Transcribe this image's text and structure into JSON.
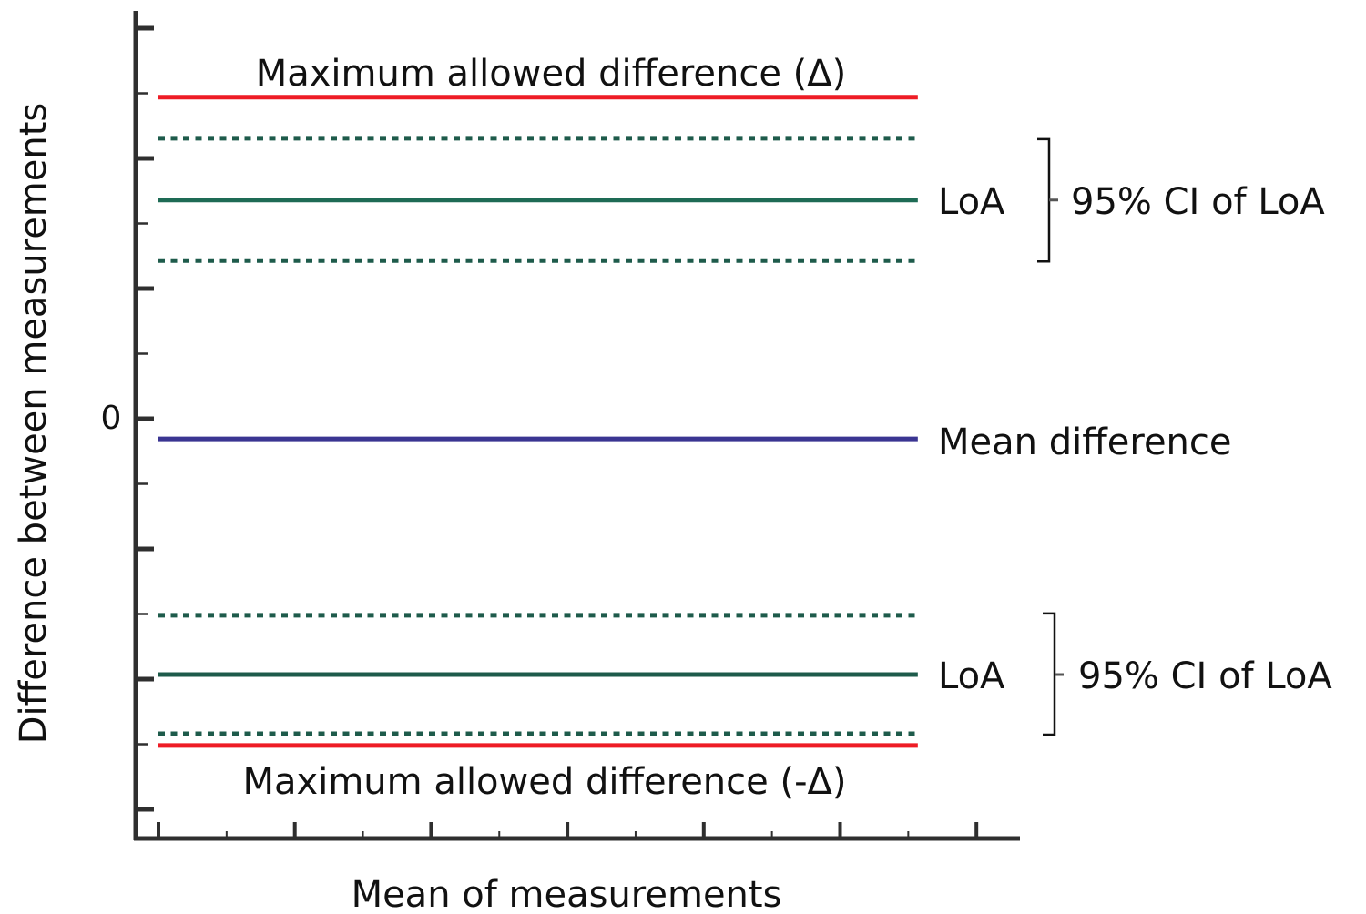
{
  "chart_data": {
    "type": "line",
    "title": "",
    "xlabel": "Mean of measurements",
    "ylabel": "Difference between measurements",
    "ylim": [
      -6.1,
      6.0
    ],
    "xlim": [
      0,
      6.3
    ],
    "y_major_ticks": [
      -6,
      -4,
      -2,
      0,
      2,
      4,
      6
    ],
    "y_minor_ticks": [
      -5,
      -3,
      -1,
      1,
      3,
      5
    ],
    "y_tick_labels": [
      {
        "value": 0,
        "label": "0"
      }
    ],
    "x_major_ticks": [
      0,
      1,
      2,
      3,
      4,
      5,
      6
    ],
    "x_minor_ticks": [
      0.5,
      1.5,
      2.5,
      3.5,
      4.5,
      5.5
    ],
    "grid": false,
    "line_x_range": [
      0,
      5.57
    ],
    "series": [
      {
        "name": "Maximum allowed difference (Δ)",
        "y": 4.94,
        "style": "solid",
        "color": "#ee1c25"
      },
      {
        "name": "Upper LoA CI upper",
        "y": 4.31,
        "style": "dotted",
        "color": "#1e5b4b"
      },
      {
        "name": "Upper LoA",
        "y": 3.36,
        "style": "solid",
        "color": "#1e6b55"
      },
      {
        "name": "Upper LoA CI lower",
        "y": 2.43,
        "style": "dotted",
        "color": "#1e5b4b"
      },
      {
        "name": "Mean difference",
        "y": -0.31,
        "style": "solid",
        "color": "#3a3592"
      },
      {
        "name": "Lower LoA CI upper",
        "y": -3.02,
        "style": "dotted",
        "color": "#1e5b4b"
      },
      {
        "name": "Lower LoA",
        "y": -3.93,
        "style": "solid",
        "color": "#1e5b4b"
      },
      {
        "name": "Lower LoA CI lower",
        "y": -4.84,
        "style": "dotted",
        "color": "#1e5b4b"
      },
      {
        "name": "Maximum allowed difference (-Δ)",
        "y": -5.02,
        "style": "solid",
        "color": "#ee1c25"
      }
    ],
    "annotations": {
      "max_top": "Maximum allowed difference (Δ)",
      "max_bottom": "Maximum allowed difference (-Δ)",
      "loa_upper": "LoA",
      "loa_lower": "LoA",
      "ci_upper": "95% CI of LoA",
      "ci_lower": "95% CI of LoA",
      "mean": "Mean difference"
    }
  }
}
